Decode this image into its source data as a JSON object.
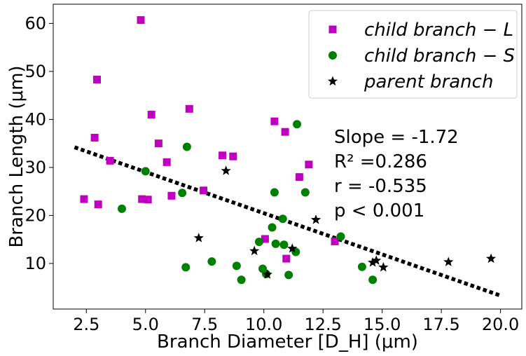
{
  "chart_data": {
    "type": "scatter",
    "xlabel": "Branch Diameter [D_H] (μm)",
    "ylabel": "Branch Length (μm)",
    "xlim": [
      1.1,
      20.9
    ],
    "ylim": [
      0.5,
      64
    ],
    "xticks": [
      "2.5",
      "5.0",
      "7.5",
      "10.0",
      "12.5",
      "15.0",
      "17.5",
      "20.0"
    ],
    "xtick_values": [
      2.5,
      5.0,
      7.5,
      10.0,
      12.5,
      15.0,
      17.5,
      20.0
    ],
    "yticks": [
      "10",
      "20",
      "30",
      "40",
      "50",
      "60"
    ],
    "ytick_values": [
      10,
      20,
      30,
      40,
      50,
      60
    ],
    "grid": false,
    "legend_position": "top-right",
    "series": [
      {
        "name": "child branch − L",
        "marker": "square",
        "color": "#bf00bf",
        "points": [
          [
            2.4,
            23.4
          ],
          [
            2.85,
            36.2
          ],
          [
            2.95,
            48.3
          ],
          [
            3.0,
            22.3
          ],
          [
            3.5,
            31.4
          ],
          [
            4.8,
            60.7
          ],
          [
            4.85,
            23.4
          ],
          [
            5.1,
            23.3
          ],
          [
            5.25,
            41.0
          ],
          [
            5.55,
            35.0
          ],
          [
            5.9,
            31.1
          ],
          [
            6.1,
            24.1
          ],
          [
            6.85,
            42.2
          ],
          [
            7.45,
            25.2
          ],
          [
            8.25,
            32.5
          ],
          [
            8.7,
            32.3
          ],
          [
            10.05,
            15.1
          ],
          [
            10.45,
            39.6
          ],
          [
            10.9,
            37.4
          ],
          [
            10.95,
            11.0
          ],
          [
            11.5,
            28.0
          ],
          [
            11.9,
            30.6
          ],
          [
            13.0,
            14.6
          ]
        ]
      },
      {
        "name": "child branch − S",
        "marker": "circle",
        "color": "#008000",
        "points": [
          [
            4.0,
            21.4
          ],
          [
            5.0,
            29.2
          ],
          [
            6.55,
            24.7
          ],
          [
            6.7,
            9.2
          ],
          [
            6.75,
            34.3
          ],
          [
            7.8,
            10.4
          ],
          [
            8.85,
            9.5
          ],
          [
            9.05,
            6.6
          ],
          [
            9.8,
            14.5
          ],
          [
            9.95,
            8.9
          ],
          [
            10.1,
            7.8
          ],
          [
            10.35,
            17.5
          ],
          [
            10.45,
            24.8
          ],
          [
            10.5,
            14.1
          ],
          [
            10.8,
            19.3
          ],
          [
            10.85,
            13.9
          ],
          [
            11.05,
            7.6
          ],
          [
            11.35,
            12.4
          ],
          [
            11.4,
            39.0
          ],
          [
            11.75,
            24.8
          ],
          [
            13.25,
            15.6
          ],
          [
            14.15,
            9.3
          ],
          [
            14.6,
            6.6
          ]
        ]
      },
      {
        "name": "parent branch",
        "marker": "star",
        "color": "#000000",
        "points": [
          [
            7.25,
            15.3
          ],
          [
            8.4,
            29.3
          ],
          [
            9.6,
            12.6
          ],
          [
            10.15,
            7.7
          ],
          [
            11.2,
            13.1
          ],
          [
            12.2,
            19.1
          ],
          [
            14.6,
            10.2
          ],
          [
            14.75,
            10.6
          ],
          [
            15.05,
            9.2
          ],
          [
            17.8,
            10.3
          ],
          [
            19.6,
            11.0
          ]
        ]
      }
    ],
    "fit_line": {
      "style": "dotted",
      "color": "#000000",
      "x": [
        2.0,
        20.0
      ],
      "y": [
        34.2,
        3.3
      ]
    },
    "annotations": [
      "Slope = -1.72",
      "R² =0.286",
      "r = -0.535",
      "p < 0.001"
    ]
  }
}
